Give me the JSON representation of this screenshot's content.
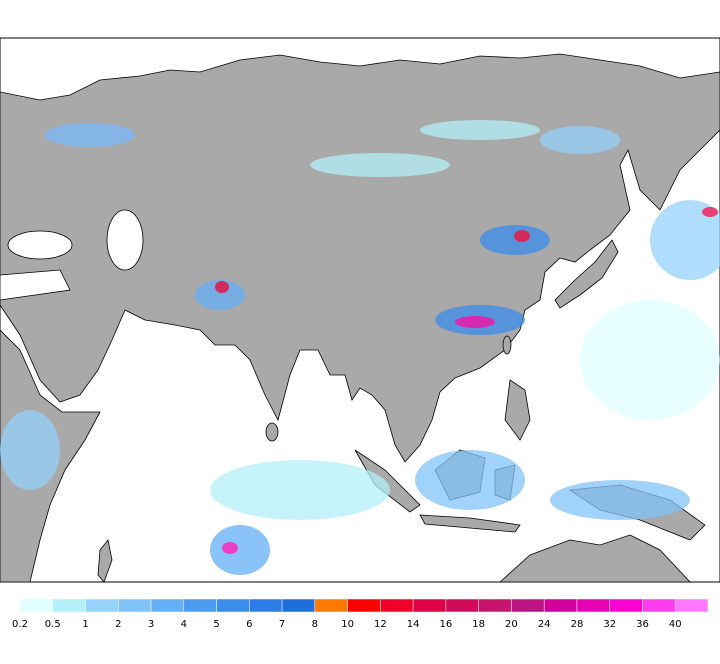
{
  "legend": [
    {
      "label": 0.2,
      "color": "#e1ffff"
    },
    {
      "label": 0.5,
      "color": "#b4f0fa"
    },
    {
      "label": 1,
      "color": "#96d2fa"
    },
    {
      "label": 2,
      "color": "#82c3f7"
    },
    {
      "label": 3,
      "color": "#64aff5"
    },
    {
      "label": 4,
      "color": "#4b9bf0"
    },
    {
      "label": 5,
      "color": "#3c8ceb"
    },
    {
      "label": 6,
      "color": "#2d7be6"
    },
    {
      "label": 7,
      "color": "#1e6edc"
    },
    {
      "label": 8,
      "color": "#ff7800"
    },
    {
      "label": 10,
      "color": "#ff0000"
    },
    {
      "label": 12,
      "color": "#f00028"
    },
    {
      "label": 14,
      "color": "#e10046"
    },
    {
      "label": 16,
      "color": "#d20a5a"
    },
    {
      "label": 18,
      "color": "#c8146e"
    },
    {
      "label": 20,
      "color": "#be1482"
    },
    {
      "label": 24,
      "color": "#d2009b"
    },
    {
      "label": 28,
      "color": "#e600b4"
    },
    {
      "label": 32,
      "color": "#fa00d2"
    },
    {
      "label": 36,
      "color": "#ff3cf0"
    },
    {
      "label": 40,
      "color": "#ff78ff"
    }
  ]
}
